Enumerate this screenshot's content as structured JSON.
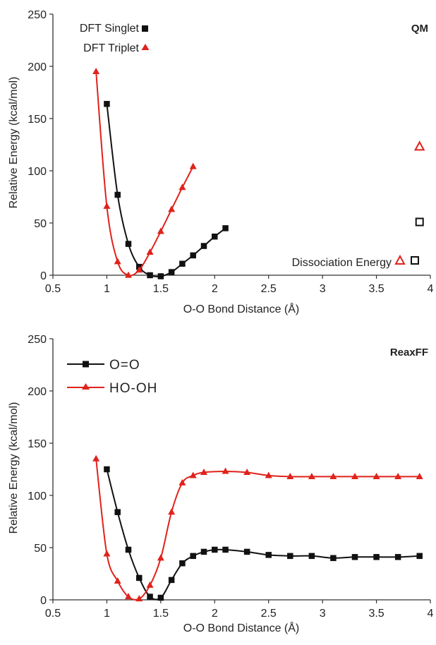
{
  "chart_data": [
    {
      "type": "line",
      "panel_label": "QM",
      "xlabel": "O-O Bond Distance (Å)",
      "ylabel": "Relative Energy (kcal/mol)",
      "xlim": [
        0.5,
        4
      ],
      "ylim": [
        0,
        250
      ],
      "x_ticks": [
        "0.5",
        "1",
        "1.5",
        "2",
        "2.5",
        "3",
        "3.5",
        "4"
      ],
      "y_ticks": [
        "0",
        "50",
        "100",
        "150",
        "200",
        "250"
      ],
      "legend_position": "top-left",
      "series": [
        {
          "name": "DFT Singlet",
          "marker": "square",
          "color": "#111111",
          "x": [
            1.0,
            1.1,
            1.2,
            1.3,
            1.4,
            1.5,
            1.6,
            1.7,
            1.8,
            1.9,
            2.0,
            2.1
          ],
          "y": [
            164,
            77,
            30,
            8,
            0,
            -1,
            3,
            11,
            19,
            28,
            37,
            45
          ]
        },
        {
          "name": "DFT Triplet",
          "marker": "triangle",
          "color": "#e0221b",
          "x": [
            0.9,
            1.0,
            1.1,
            1.2,
            1.3,
            1.4,
            1.5,
            1.6,
            1.7,
            1.8
          ],
          "y": [
            195,
            66,
            13,
            0,
            5,
            22,
            42,
            63,
            84,
            104
          ]
        }
      ],
      "dissociation": {
        "label": "Dissociation Energy",
        "points": [
          {
            "series": "DFT Triplet",
            "x": 3.9,
            "y": 123
          },
          {
            "series": "DFT Singlet",
            "x": 3.9,
            "y": 51
          }
        ]
      }
    },
    {
      "type": "line",
      "panel_label": "ReaxFF",
      "xlabel": "O-O Bond Distance (Å)",
      "ylabel": "Relative Energy (kcal/mol)",
      "xlim": [
        0.5,
        4
      ],
      "ylim": [
        0,
        250
      ],
      "x_ticks": [
        "0.5",
        "1",
        "1.5",
        "2",
        "2.5",
        "3",
        "3.5",
        "4"
      ],
      "y_ticks": [
        "0",
        "50",
        "100",
        "150",
        "200",
        "250"
      ],
      "legend_position": "top-left",
      "series": [
        {
          "name": "O=O",
          "marker": "square",
          "color": "#111111",
          "x": [
            1.0,
            1.1,
            1.2,
            1.3,
            1.4,
            1.5,
            1.6,
            1.7,
            1.8,
            1.9,
            2.0,
            2.1,
            2.3,
            2.5,
            2.7,
            2.9,
            3.1,
            3.3,
            3.5,
            3.7,
            3.9
          ],
          "y": [
            125,
            84,
            48,
            21,
            3,
            2,
            19,
            35,
            42,
            46,
            48,
            48,
            46,
            43,
            42,
            42,
            40,
            41,
            41,
            41,
            42
          ]
        },
        {
          "name": "HO-OH",
          "marker": "triangle",
          "color": "#e0221b",
          "x": [
            0.9,
            1.0,
            1.1,
            1.2,
            1.3,
            1.4,
            1.5,
            1.6,
            1.7,
            1.8,
            1.9,
            2.1,
            2.3,
            2.5,
            2.7,
            2.9,
            3.1,
            3.3,
            3.5,
            3.7,
            3.9
          ],
          "y": [
            135,
            44,
            18,
            3,
            1,
            14,
            40,
            84,
            112,
            119,
            122,
            123,
            122,
            119,
            118,
            118,
            118,
            118,
            118,
            118,
            118
          ]
        }
      ]
    }
  ]
}
